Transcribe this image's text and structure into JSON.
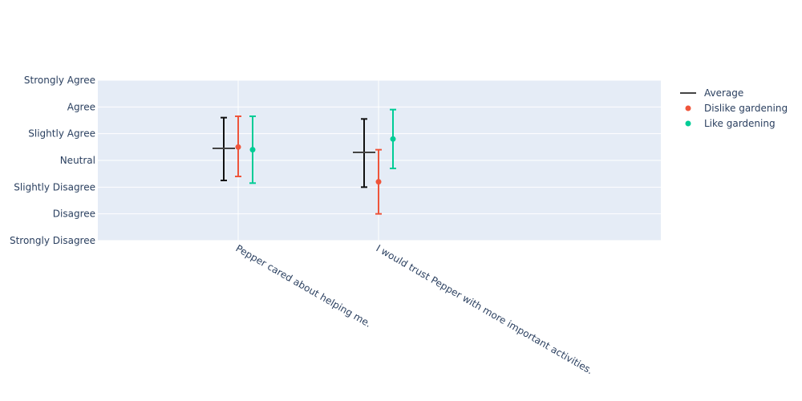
{
  "chart_data": {
    "type": "scatter",
    "categories": [
      "Pepper cared about helping me.",
      "I would trust Pepper with more important activities."
    ],
    "y_tick_labels": [
      "Strongly Disagree",
      "Disagree",
      "Slightly Disagree",
      "Neutral",
      "Slightly Agree",
      "Agree",
      "Strongly Agree"
    ],
    "y_tick_values": [
      1,
      2,
      3,
      4,
      5,
      6,
      7
    ],
    "ylim": [
      1,
      7
    ],
    "grid": true,
    "legend_position": "top-right",
    "series": [
      {
        "name": "Average",
        "marker": "line",
        "color": "#444444",
        "error_bar_color": "#111111",
        "values": [
          4.45,
          4.3
        ],
        "error_low": [
          3.25,
          3.0
        ],
        "error_high": [
          5.6,
          5.55
        ]
      },
      {
        "name": "Dislike gardening",
        "marker": "circle",
        "color": "#EF553B",
        "values": [
          4.5,
          3.2
        ],
        "error_low": [
          3.4,
          2.0
        ],
        "error_high": [
          5.65,
          4.4
        ]
      },
      {
        "name": "Like gardening",
        "marker": "circle",
        "color": "#00CC96",
        "values": [
          4.4,
          4.8
        ],
        "error_low": [
          3.15,
          3.7
        ],
        "error_high": [
          5.65,
          5.9
        ]
      }
    ]
  },
  "style": {
    "plot_bg": "#E5ECF6",
    "grid_color": "#ffffff",
    "text_color": "#2a3f5f"
  }
}
